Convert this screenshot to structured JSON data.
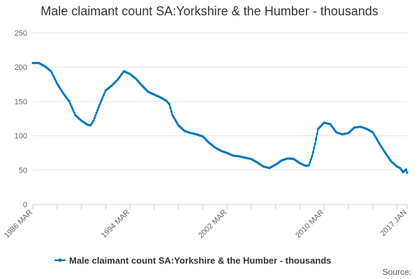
{
  "chart_data": {
    "type": "line",
    "title": "Male claimant count SA:Yorkshire & the Humber - thousands",
    "xlabel": "",
    "ylabel": "",
    "ylim": [
      0,
      250
    ],
    "yticks": [
      0,
      50,
      100,
      150,
      200,
      250
    ],
    "xlim": [
      "1986-03",
      "2017-01"
    ],
    "xticks": [
      "1986 MAR",
      "1994 MAR",
      "2002 MAR",
      "2010 MAR",
      "2017 JAN"
    ],
    "grid": "horizontal",
    "legend_position": "bottom",
    "series": [
      {
        "name": "Male claimant count SA:Yorkshire & the Humber - thousands",
        "color": "#0076c0",
        "points": [
          [
            "1986-03",
            206
          ],
          [
            "1986-09",
            206
          ],
          [
            "1987-03",
            201
          ],
          [
            "1987-09",
            194
          ],
          [
            "1988-03",
            176
          ],
          [
            "1988-09",
            162
          ],
          [
            "1989-03",
            150
          ],
          [
            "1989-09",
            130
          ],
          [
            "1990-03",
            122
          ],
          [
            "1990-09",
            116
          ],
          [
            "1990-12",
            115
          ],
          [
            "1991-03",
            122
          ],
          [
            "1991-09",
            145
          ],
          [
            "1992-03",
            166
          ],
          [
            "1992-09",
            173
          ],
          [
            "1993-03",
            182
          ],
          [
            "1993-06",
            188
          ],
          [
            "1993-09",
            194
          ],
          [
            "1994-03",
            190
          ],
          [
            "1994-09",
            183
          ],
          [
            "1995-03",
            173
          ],
          [
            "1995-09",
            164
          ],
          [
            "1996-03",
            160
          ],
          [
            "1996-09",
            156
          ],
          [
            "1997-03",
            151
          ],
          [
            "1997-06",
            146
          ],
          [
            "1997-09",
            130
          ],
          [
            "1998-03",
            115
          ],
          [
            "1998-09",
            107
          ],
          [
            "1999-03",
            104
          ],
          [
            "1999-09",
            102
          ],
          [
            "2000-03",
            99
          ],
          [
            "2000-09",
            90
          ],
          [
            "2001-03",
            83
          ],
          [
            "2001-09",
            78
          ],
          [
            "2002-03",
            75
          ],
          [
            "2002-09",
            71
          ],
          [
            "2003-03",
            70
          ],
          [
            "2003-09",
            68
          ],
          [
            "2004-03",
            66
          ],
          [
            "2004-09",
            61
          ],
          [
            "2005-03",
            55
          ],
          [
            "2005-09",
            53
          ],
          [
            "2006-03",
            58
          ],
          [
            "2006-09",
            64
          ],
          [
            "2007-03",
            67
          ],
          [
            "2007-09",
            66
          ],
          [
            "2008-03",
            60
          ],
          [
            "2008-09",
            56
          ],
          [
            "2008-12",
            57
          ],
          [
            "2009-03",
            70
          ],
          [
            "2009-06",
            88
          ],
          [
            "2009-09",
            110
          ],
          [
            "2010-03",
            119
          ],
          [
            "2010-09",
            117
          ],
          [
            "2011-03",
            105
          ],
          [
            "2011-09",
            102
          ],
          [
            "2012-03",
            104
          ],
          [
            "2012-09",
            112
          ],
          [
            "2013-03",
            113
          ],
          [
            "2013-09",
            110
          ],
          [
            "2014-03",
            105
          ],
          [
            "2014-09",
            90
          ],
          [
            "2015-03",
            76
          ],
          [
            "2015-09",
            63
          ],
          [
            "2016-03",
            55
          ],
          [
            "2016-06",
            53
          ],
          [
            "2016-09",
            47
          ],
          [
            "2016-12",
            51
          ],
          [
            "2017-01",
            46
          ]
        ]
      }
    ],
    "source_label": "Source:"
  }
}
